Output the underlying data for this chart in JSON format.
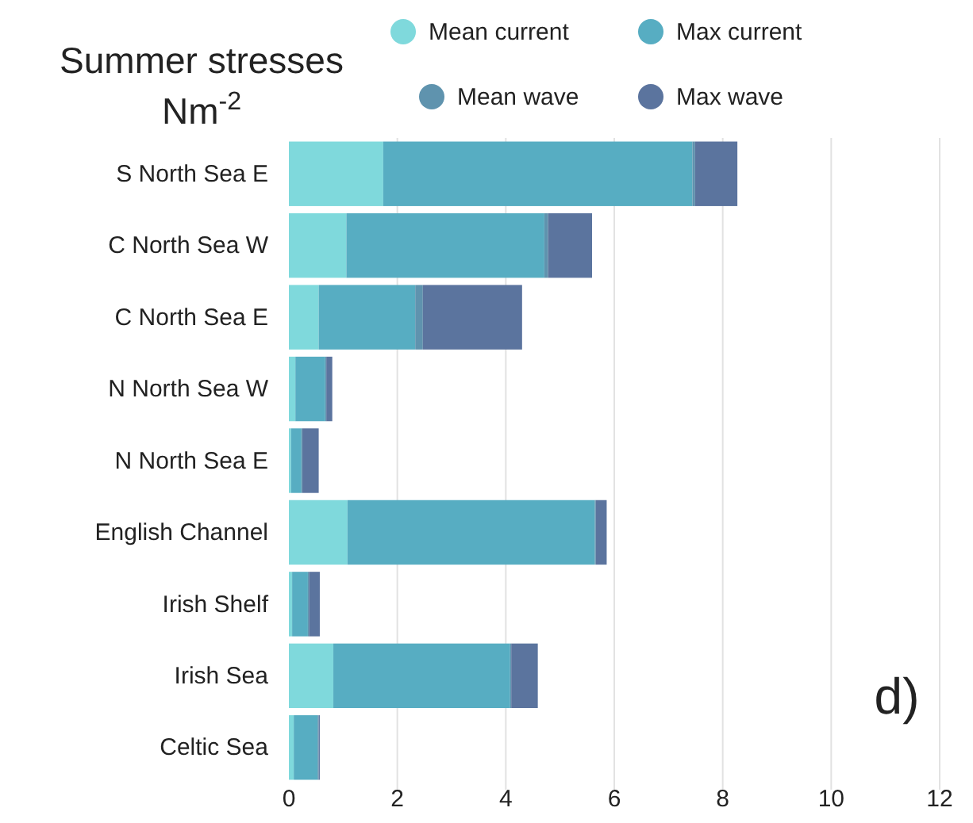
{
  "chart_data": {
    "type": "bar",
    "orientation": "horizontal",
    "stacked": true,
    "title": "Summer stresses",
    "subtitle": "Nm$^{-2}$",
    "categories": [
      "S North Sea E",
      "C North Sea W",
      "C North Sea E",
      "N North Sea W",
      "N North Sea E",
      "English Channel",
      "Irish Shelf",
      "Irish Sea",
      "Celtic Sea"
    ],
    "series": [
      {
        "name": "Mean current",
        "color": "#7fd9dc",
        "values": [
          1.74,
          1.06,
          0.55,
          0.12,
          0.04,
          1.08,
          0.06,
          0.82,
          0.09
        ]
      },
      {
        "name": "Max current",
        "color": "#57adc2",
        "values": [
          5.7,
          3.65,
          1.78,
          0.55,
          0.19,
          4.56,
          0.29,
          3.26,
          0.44
        ]
      },
      {
        "name": "Mean wave",
        "color": "#5f93ae",
        "values": [
          0.05,
          0.07,
          0.14,
          0.02,
          0.02,
          0.02,
          0.02,
          0.02,
          0.02
        ]
      },
      {
        "name": "Max wave",
        "color": "#5b749e",
        "values": [
          0.78,
          0.81,
          1.83,
          0.11,
          0.3,
          0.2,
          0.2,
          0.49,
          0.02
        ]
      }
    ],
    "xlim": [
      0,
      12
    ],
    "xticks": [
      0,
      2,
      4,
      6,
      8,
      10,
      12
    ],
    "grid": "x",
    "legend": "top right",
    "annotations": [
      {
        "text": "d)"
      }
    ]
  }
}
